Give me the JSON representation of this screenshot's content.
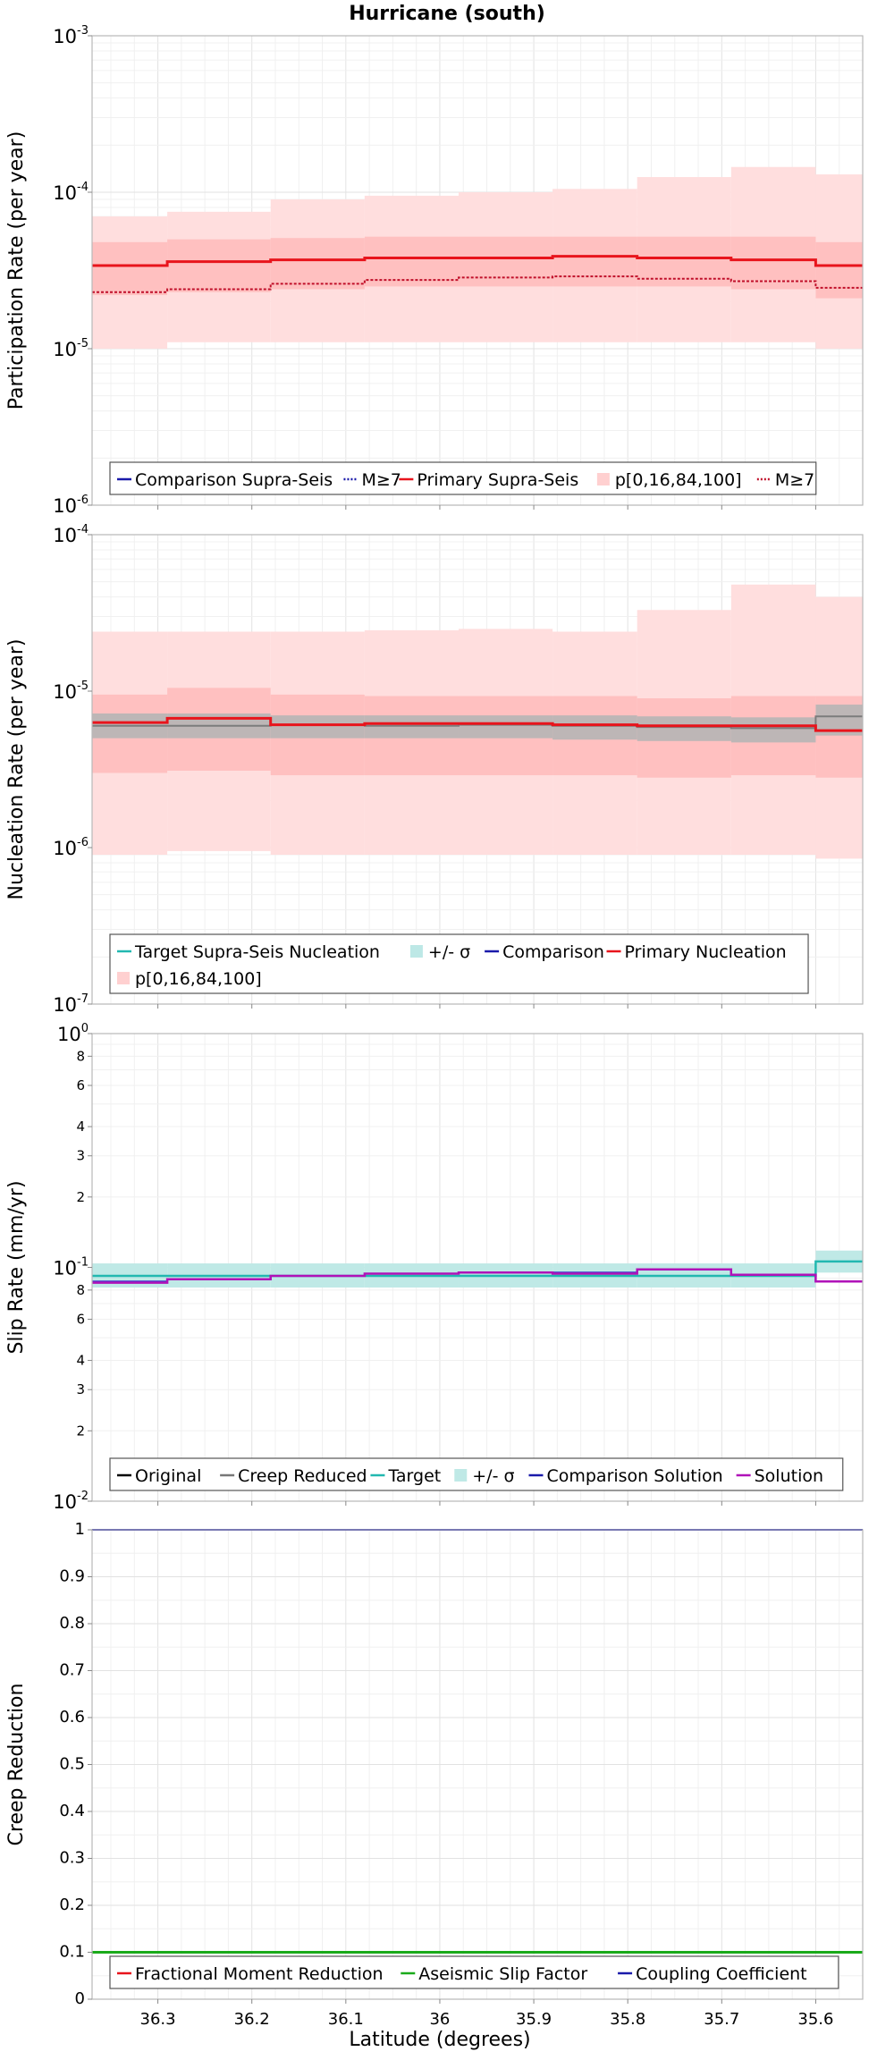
{
  "title": "Hurricane (south)",
  "x_axis_label": "Latitude (degrees)",
  "x_ticks": [
    "36.3",
    "36.2",
    "36.1",
    "36",
    "35.9",
    "35.8",
    "35.7",
    "35.6"
  ],
  "chart_data": [
    {
      "type": "line",
      "panel": "participation",
      "ylabel": "Participation Rate (per year)",
      "yscale": "log",
      "ylim": [
        1e-06,
        0.001
      ],
      "xlim": [
        36.37,
        35.55
      ],
      "x_inverted": true,
      "grid": true,
      "y_ticks": [
        {
          "value": 0.001,
          "base": "10",
          "exp": "-3"
        },
        {
          "value": 0.0001,
          "base": "10",
          "exp": "-4"
        },
        {
          "value": 1e-05,
          "base": "10",
          "exp": "-5"
        },
        {
          "value": 1e-06,
          "base": "10",
          "exp": "-6"
        }
      ],
      "x_bin_edges": [
        36.37,
        36.29,
        36.18,
        36.08,
        35.98,
        35.88,
        35.79,
        35.69,
        35.6,
        35.55
      ],
      "bands": [
        {
          "name": "p[0,16,84,100]",
          "color": "#ffdede",
          "low": [
            1e-05,
            1.1e-05,
            1.1e-05,
            1.1e-05,
            1.1e-05,
            1.1e-05,
            1.1e-05,
            1.1e-05,
            1e-05
          ],
          "high": [
            7e-05,
            7.5e-05,
            9e-05,
            9.5e-05,
            0.0001,
            0.000105,
            0.000125,
            0.000145,
            0.00013
          ]
        },
        {
          "name": "p[0,16,84,100]",
          "color": "#ffc0c0",
          "low": [
            2.2e-05,
            2.3e-05,
            2.4e-05,
            2.5e-05,
            2.5e-05,
            2.5e-05,
            2.5e-05,
            2.4e-05,
            2.1e-05
          ],
          "high": [
            4.8e-05,
            5e-05,
            5.1e-05,
            5.2e-05,
            5.2e-05,
            5.2e-05,
            5.2e-05,
            5.2e-05,
            4.8e-05
          ]
        }
      ],
      "series": [
        {
          "name": "Primary Supra-Seis",
          "color": "#e8141c",
          "width": 3,
          "dash": "",
          "values": [
            3.4e-05,
            3.6e-05,
            3.7e-05,
            3.8e-05,
            3.8e-05,
            3.9e-05,
            3.8e-05,
            3.7e-05,
            3.4e-05
          ]
        },
        {
          "name": "M≥7",
          "color": "#c0102a",
          "width": 2,
          "dash": "3,2",
          "values": [
            2.3e-05,
            2.4e-05,
            2.6e-05,
            2.75e-05,
            2.85e-05,
            2.9e-05,
            2.8e-05,
            2.7e-05,
            2.45e-05
          ]
        }
      ],
      "legend": {
        "rows": [
          [
            {
              "label": "Comparison Supra-Seis",
              "color": "#1a1aaa",
              "kind": "line"
            },
            {
              "label": "M≥7",
              "color": "#1a1aaa",
              "kind": "dotted"
            },
            {
              "label": "Primary Supra-Seis",
              "color": "#e8141c",
              "kind": "line"
            },
            {
              "label": "p[0,16,84,100]",
              "color": "#ffd0d0",
              "kind": "box"
            },
            {
              "label": "M≥7",
              "color": "#c0102a",
              "kind": "dotted"
            }
          ]
        ]
      }
    },
    {
      "type": "line",
      "panel": "nucleation",
      "ylabel": "Nucleation Rate (per year)",
      "yscale": "log",
      "ylim": [
        1e-07,
        0.0001
      ],
      "xlim": [
        36.37,
        35.55
      ],
      "x_inverted": true,
      "grid": true,
      "y_ticks": [
        {
          "value": 0.0001,
          "base": "10",
          "exp": "-4"
        },
        {
          "value": 1e-05,
          "base": "10",
          "exp": "-5"
        },
        {
          "value": 1e-06,
          "base": "10",
          "exp": "-6"
        },
        {
          "value": 1e-07,
          "base": "10",
          "exp": "-7"
        }
      ],
      "x_bin_edges": [
        36.37,
        36.29,
        36.18,
        36.08,
        35.98,
        35.88,
        35.79,
        35.69,
        35.6,
        35.55
      ],
      "bands": [
        {
          "name": "p[0,16,84,100]",
          "color": "#ffdede",
          "low": [
            9e-07,
            9.5e-07,
            9e-07,
            9e-07,
            9e-07,
            9e-07,
            9e-07,
            9e-07,
            8.5e-07
          ],
          "high": [
            2.4e-05,
            2.4e-05,
            2.4e-05,
            2.45e-05,
            2.5e-05,
            2.4e-05,
            3.3e-05,
            4.8e-05,
            4e-05
          ]
        },
        {
          "name": "p[0,16,84,100]",
          "color": "#ffc0c0",
          "low": [
            3e-06,
            3.1e-06,
            2.9e-06,
            2.9e-06,
            2.9e-06,
            2.9e-06,
            2.8e-06,
            2.9e-06,
            2.8e-06
          ],
          "high": [
            9.5e-06,
            1.05e-05,
            9.5e-06,
            9.3e-06,
            9.3e-06,
            9.3e-06,
            9e-06,
            9.3e-06,
            9.3e-06
          ]
        },
        {
          "name": "+/- σ",
          "color": "#bdb6b6",
          "low": [
            5e-06,
            5e-06,
            5e-06,
            5e-06,
            5e-06,
            4.9e-06,
            4.8e-06,
            4.7e-06,
            5.2e-06
          ],
          "high": [
            7.2e-06,
            7.2e-06,
            7e-06,
            7e-06,
            7e-06,
            7e-06,
            6.9e-06,
            6.8e-06,
            8.2e-06
          ]
        }
      ],
      "series": [
        {
          "name": "Comparison",
          "color": "#7c7c7c",
          "width": 2,
          "dash": "",
          "values": [
            6e-06,
            6e-06,
            6.1e-06,
            6e-06,
            6.1e-06,
            6e-06,
            5.9e-06,
            5.8e-06,
            6.9e-06
          ]
        },
        {
          "name": "Primary Nucleation",
          "color": "#e8141c",
          "width": 3,
          "dash": "",
          "values": [
            6.3e-06,
            6.7e-06,
            6.1e-06,
            6.2e-06,
            6.2e-06,
            6.1e-06,
            6e-06,
            6e-06,
            5.6e-06
          ]
        }
      ],
      "legend": {
        "rows": [
          [
            {
              "label": "Target Supra-Seis Nucleation",
              "color": "#22b8b0",
              "kind": "line"
            },
            {
              "label": "+/- σ",
              "color": "#bde8e6",
              "kind": "box"
            },
            {
              "label": "Comparison",
              "color": "#1a1aaa",
              "kind": "line"
            },
            {
              "label": "Primary Nucleation",
              "color": "#e8141c",
              "kind": "line"
            }
          ],
          [
            {
              "label": "p[0,16,84,100]",
              "color": "#ffd0d0",
              "kind": "box"
            }
          ]
        ]
      }
    },
    {
      "type": "line",
      "panel": "slip",
      "ylabel": "Slip Rate (mm/yr)",
      "yscale": "log",
      "ylim": [
        0.01,
        1
      ],
      "xlim": [
        36.37,
        35.55
      ],
      "x_inverted": true,
      "grid": true,
      "y_ticks": [
        {
          "value": 1,
          "base": "10",
          "exp": "0"
        },
        {
          "value": 0.8,
          "label": "8"
        },
        {
          "value": 0.6,
          "label": "6"
        },
        {
          "value": 0.4,
          "label": "4"
        },
        {
          "value": 0.3,
          "label": "3"
        },
        {
          "value": 0.2,
          "label": "2"
        },
        {
          "value": 0.1,
          "base": "10",
          "exp": "-1"
        },
        {
          "value": 0.08,
          "label": "8"
        },
        {
          "value": 0.06,
          "label": "6"
        },
        {
          "value": 0.04,
          "label": "4"
        },
        {
          "value": 0.03,
          "label": "3"
        },
        {
          "value": 0.02,
          "label": "2"
        },
        {
          "value": 0.01,
          "base": "10",
          "exp": "-2"
        }
      ],
      "x_bin_edges": [
        36.37,
        36.29,
        36.18,
        36.08,
        35.98,
        35.88,
        35.79,
        35.69,
        35.6,
        35.55
      ],
      "bands": [
        {
          "name": "+/- σ",
          "color": "#bfe9e6",
          "low": [
            0.082,
            0.082,
            0.082,
            0.082,
            0.082,
            0.082,
            0.082,
            0.082,
            0.095
          ],
          "high": [
            0.104,
            0.104,
            0.104,
            0.104,
            0.104,
            0.104,
            0.104,
            0.104,
            0.118
          ]
        }
      ],
      "series": [
        {
          "name": "Target",
          "color": "#22b8b0",
          "width": 2.5,
          "dash": "",
          "values": [
            0.092,
            0.092,
            0.092,
            0.092,
            0.092,
            0.092,
            0.092,
            0.092,
            0.106
          ]
        },
        {
          "name": "Comparison Solution",
          "color": "#3a3acc",
          "width": 2,
          "dash": "",
          "values": [
            0.087,
            0.089,
            0.092,
            0.094,
            0.095,
            0.095,
            0.098,
            0.093,
            0.087
          ]
        },
        {
          "name": "Solution",
          "color": "#b012b8",
          "width": 2.5,
          "dash": "",
          "values": [
            0.086,
            0.089,
            0.092,
            0.094,
            0.095,
            0.094,
            0.098,
            0.093,
            0.087
          ]
        }
      ],
      "legend": {
        "rows": [
          [
            {
              "label": "Original",
              "color": "#000000",
              "kind": "line"
            },
            {
              "label": "Creep Reduced",
              "color": "#777777",
              "kind": "line"
            },
            {
              "label": "Target",
              "color": "#22b8b0",
              "kind": "line"
            },
            {
              "label": "+/- σ",
              "color": "#bfe9e6",
              "kind": "box"
            },
            {
              "label": "Comparison Solution",
              "color": "#1a1aaa",
              "kind": "line"
            },
            {
              "label": "Solution",
              "color": "#b012b8",
              "kind": "line"
            }
          ]
        ]
      }
    },
    {
      "type": "line",
      "panel": "creep",
      "ylabel": "Creep Reduction",
      "yscale": "linear",
      "ylim": [
        0,
        1
      ],
      "xlim": [
        36.37,
        35.55
      ],
      "x_inverted": true,
      "grid": true,
      "y_ticks": [
        {
          "value": 1,
          "label": "1"
        },
        {
          "value": 0.9,
          "label": "0.9"
        },
        {
          "value": 0.8,
          "label": "0.8"
        },
        {
          "value": 0.7,
          "label": "0.7"
        },
        {
          "value": 0.6,
          "label": "0.6"
        },
        {
          "value": 0.5,
          "label": "0.5"
        },
        {
          "value": 0.4,
          "label": "0.4"
        },
        {
          "value": 0.3,
          "label": "0.3"
        },
        {
          "value": 0.2,
          "label": "0.2"
        },
        {
          "value": 0.1,
          "label": "0.1"
        },
        {
          "value": 0,
          "label": "0"
        }
      ],
      "x_bin_edges": [
        36.37,
        35.55
      ],
      "bands": [],
      "series": [
        {
          "name": "Coupling Coefficient",
          "color": "#1a1aaa",
          "width": 2,
          "dash": "",
          "values": [
            1.0
          ]
        },
        {
          "name": "Aseismic Slip Factor",
          "color": "#1aaa1a",
          "width": 3,
          "dash": "",
          "values": [
            0.1
          ]
        }
      ],
      "legend": {
        "rows": [
          [
            {
              "label": "Fractional Moment Reduction",
              "color": "#e8141c",
              "kind": "line"
            },
            {
              "label": "Aseismic Slip Factor",
              "color": "#1aaa1a",
              "kind": "line"
            },
            {
              "label": "Coupling Coefficient",
              "color": "#1a1aaa",
              "kind": "line"
            }
          ]
        ]
      }
    }
  ]
}
